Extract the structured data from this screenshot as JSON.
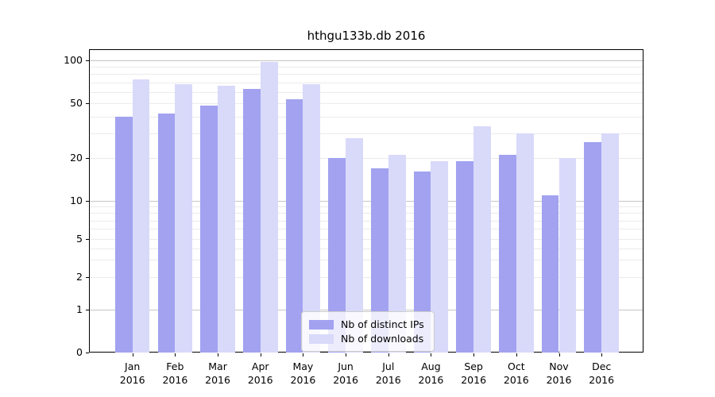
{
  "chart_data": {
    "type": "bar",
    "title": "hthgu133b.db 2016",
    "categories": [
      "Jan",
      "Feb",
      "Mar",
      "Apr",
      "May",
      "Jun",
      "Jul",
      "Aug",
      "Sep",
      "Oct",
      "Nov",
      "Dec"
    ],
    "year_label": "2016",
    "series": [
      {
        "name": "Nb of distinct IPs",
        "color": "#a2a2f0",
        "values": [
          40,
          42,
          48,
          63,
          53,
          20,
          17,
          16,
          19,
          21,
          11,
          26
        ]
      },
      {
        "name": "Nb of downloads",
        "color": "#d9d9fa",
        "values": [
          73,
          68,
          66,
          97,
          68,
          28,
          21,
          19,
          34,
          30,
          20,
          30
        ]
      }
    ],
    "yticks": [
      0,
      1,
      2,
      5,
      10,
      20,
      50,
      100
    ],
    "yscale": "log-like (0,1,2,5,10,20,50,100)",
    "ylim": [
      0,
      120
    ],
    "xlabel": "",
    "ylabel": "",
    "grid": true,
    "legend_position": "bottom-center"
  }
}
